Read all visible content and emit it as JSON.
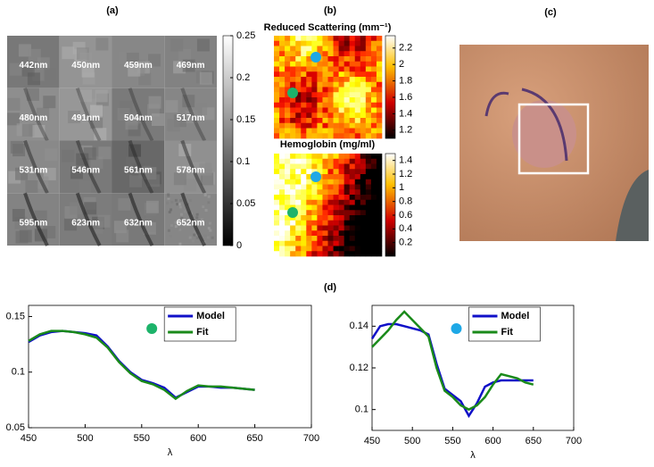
{
  "panel_a": {
    "label": "(a)",
    "tile_labels": [
      "442nm",
      "450nm",
      "459nm",
      "469nm",
      "480nm",
      "491nm",
      "504nm",
      "517nm",
      "531nm",
      "546nm",
      "561nm",
      "578nm",
      "595nm",
      "623nm",
      "632nm",
      "652nm"
    ],
    "colorbar": {
      "lim": [
        0,
        0.25
      ],
      "ticks": [
        0,
        0.05,
        0.1,
        0.15,
        0.2,
        0.25
      ]
    }
  },
  "panel_b": {
    "label": "(b)",
    "maps": [
      {
        "title": "Reduced Scattering (mm⁻¹)",
        "colorbar": {
          "lim": [
            1.1,
            2.35
          ],
          "ticks": [
            1.2,
            1.4,
            1.6,
            1.8,
            2,
            2.2
          ]
        }
      },
      {
        "title": "Hemoglobin (mg/ml)",
        "colorbar": {
          "lim": [
            0,
            1.5
          ],
          "ticks": [
            0.2,
            0.4,
            0.6,
            0.8,
            1,
            1.2,
            1.4
          ]
        }
      }
    ]
  },
  "panel_c": {
    "label": "(c)"
  },
  "panel_d": {
    "label": "(d)"
  },
  "chart_data": [
    {
      "type": "line",
      "xlabel": "λ",
      "legend": "upper right",
      "x": [
        450,
        460,
        470,
        480,
        490,
        500,
        510,
        520,
        530,
        540,
        550,
        560,
        570,
        580,
        590,
        600,
        610,
        620,
        630,
        640,
        650
      ],
      "series": [
        {
          "name": "Model",
          "color": "#1010c8",
          "values": [
            0.127,
            0.133,
            0.136,
            0.137,
            0.136,
            0.135,
            0.133,
            0.123,
            0.11,
            0.1,
            0.093,
            0.09,
            0.086,
            0.077,
            0.082,
            0.087,
            0.087,
            0.086,
            0.086,
            0.085,
            0.084
          ]
        },
        {
          "name": "Fit",
          "color": "#1a8a1a",
          "values": [
            0.128,
            0.134,
            0.137,
            0.137,
            0.136,
            0.134,
            0.131,
            0.122,
            0.109,
            0.099,
            0.092,
            0.089,
            0.084,
            0.076,
            0.083,
            0.088,
            0.087,
            0.087,
            0.086,
            0.085,
            0.084
          ]
        }
      ],
      "xlim": [
        450,
        700
      ],
      "xticks": [
        450,
        500,
        550,
        600,
        650,
        700
      ],
      "ylim": [
        0.05,
        0.16
      ],
      "yticks": [
        0.05,
        0.1,
        0.15
      ],
      "marker_color": "#1db36a"
    },
    {
      "type": "line",
      "xlabel": "λ",
      "legend": "upper right",
      "x": [
        450,
        460,
        470,
        480,
        490,
        500,
        510,
        520,
        530,
        540,
        550,
        560,
        570,
        580,
        590,
        600,
        610,
        620,
        630,
        640,
        650
      ],
      "series": [
        {
          "name": "Model",
          "color": "#1010c8",
          "values": [
            0.134,
            0.14,
            0.141,
            0.141,
            0.14,
            0.139,
            0.138,
            0.136,
            0.122,
            0.11,
            0.107,
            0.104,
            0.097,
            0.103,
            0.111,
            0.113,
            0.114,
            0.114,
            0.114,
            0.114,
            0.114
          ]
        },
        {
          "name": "Fit",
          "color": "#1a8a1a",
          "values": [
            0.13,
            0.134,
            0.138,
            0.143,
            0.147,
            0.143,
            0.139,
            0.135,
            0.12,
            0.109,
            0.106,
            0.102,
            0.1,
            0.102,
            0.106,
            0.112,
            0.117,
            0.116,
            0.115,
            0.113,
            0.112
          ]
        }
      ],
      "xlim": [
        450,
        700
      ],
      "xticks": [
        450,
        500,
        550,
        600,
        650,
        700
      ],
      "ylim": [
        0.09,
        0.15
      ],
      "yticks": [
        0.1,
        0.12,
        0.14
      ],
      "marker_color": "#1ea8e6"
    }
  ]
}
